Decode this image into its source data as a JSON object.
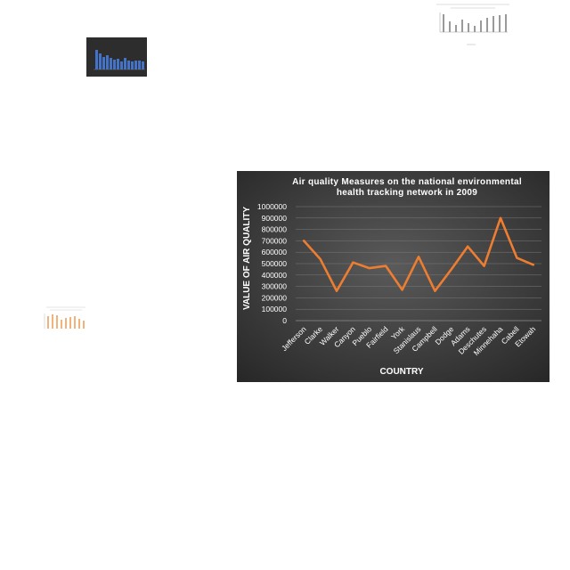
{
  "colors": {
    "line": "#ed7d31",
    "bg_center": "#5a5a5a",
    "bg_edge": "#262626",
    "grid": "#7a7a7a",
    "text": "#ffffff"
  },
  "chart_data": {
    "type": "line",
    "title": "Air quality Measures on the national environmental health tracking network in 2009",
    "title_lines": [
      "Air quality Measures on the national environmental",
      "health tracking network in 2009"
    ],
    "xlabel": "COUNTRY",
    "ylabel": "VALUE OF AIR QUALITY",
    "ylim": [
      0,
      1000000
    ],
    "yticks": [
      "0",
      "100000",
      "200000",
      "300000",
      "400000",
      "500000",
      "600000",
      "700000",
      "800000",
      "900000",
      "1000000"
    ],
    "grid": true,
    "categories": [
      "Jefferson",
      "Clarke",
      "Walker",
      "Canyon",
      "Pueblo",
      "Fairfield",
      "York",
      "Stanislaus",
      "Campbell",
      "Dodge",
      "Adams",
      "Deschutes",
      "Minnehaha",
      "Cabell",
      "Etowah"
    ],
    "series": [
      {
        "values": [
          700000,
          540000,
          260000,
          510000,
          460000,
          480000,
          270000,
          560000,
          260000,
          450000,
          650000,
          480000,
          900000,
          550000,
          490000
        ]
      }
    ]
  }
}
